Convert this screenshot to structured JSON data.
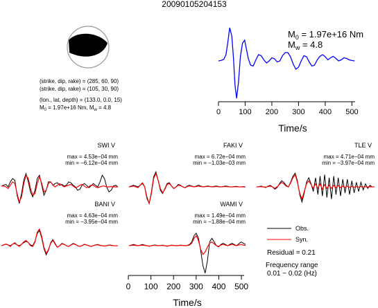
{
  "title": "20090105204153",
  "event": {
    "plane1": "(strike, dip, rake) = (285, 60, 90)",
    "plane2": "(strike, dip, rake) = (105, 30, 90)",
    "location": "(lon., lat, depth) = (133.0, 0.0, 15)",
    "summary_m0": "M",
    "summary_m0_sub": "0",
    "summary_m0_val": " = 1.97e+16 Nm, M",
    "summary_mw_sub": "w",
    "summary_mw_val": " = 4.8"
  },
  "stf": {
    "m0_label": "M",
    "m0_sub": "0",
    "m0_value": " = 1.97e+16 Nm",
    "mw_label": "M",
    "mw_sub": "w",
    "mw_value": " = 4.8",
    "xlabel": "Time/s",
    "line_color": "#0000ff"
  },
  "traces": [
    {
      "station": "SWI V",
      "max": "max = 4.53e−04 mm",
      "min": "min = −6.12e−04 mm"
    },
    {
      "station": "FAKI V",
      "max": "max = 6.72e−04 mm",
      "min": "min = −1.03e−03 mm"
    },
    {
      "station": "TLE V",
      "max": "max = 4.71e−04 mm",
      "min": "min = −3.97e−04 mm"
    },
    {
      "station": "BANI V",
      "max": "max = 4.63e−04 mm",
      "min": "min = −3.95e−04 mm"
    },
    {
      "station": "WAMI V",
      "max": "max = 1.49e−04 mm",
      "min": "min = −1.88e−04 mm"
    }
  ],
  "legend": {
    "obs": "Obs.",
    "syn": "Syn.",
    "obs_color": "#000000",
    "syn_color": "#ff0000",
    "residual": "Residual = 0.21",
    "freq_title": "Frequency range",
    "freq_value": "0.01 − 0.02 (Hz)"
  },
  "bottom_axis": {
    "xlabel": "Time/s"
  },
  "chart_data": [
    {
      "type": "line",
      "title": "",
      "xlabel": "Time/s",
      "ylabel": "",
      "xlim": [
        0,
        512
      ],
      "xticks": [
        0,
        100,
        200,
        300,
        400,
        500
      ],
      "grid": false,
      "series": [
        {
          "color": "#0000ff",
          "x": [
            0,
            10,
            20,
            28,
            35,
            42,
            50,
            56,
            62,
            68,
            75,
            82,
            90,
            98,
            105,
            112,
            120,
            130,
            140,
            150,
            160,
            170,
            180,
            190,
            200,
            210,
            220,
            230,
            240,
            250,
            260,
            270,
            280,
            290,
            300,
            310,
            320,
            330,
            340,
            350,
            360,
            370,
            380,
            390,
            400,
            410,
            420,
            430,
            440,
            450,
            460,
            470,
            480,
            490,
            500,
            510
          ],
          "y": [
            0.0,
            0.02,
            0.08,
            0.3,
            0.9,
            1.6,
            1.2,
            0.2,
            -1.2,
            -1.8,
            -1.0,
            0.2,
            0.85,
            1.0,
            0.55,
            0.1,
            -0.2,
            -0.25,
            0.05,
            0.3,
            0.25,
            0.05,
            -0.1,
            0.0,
            0.15,
            0.1,
            -0.05,
            0.0,
            0.25,
            0.4,
            0.4,
            0.2,
            -0.15,
            -0.4,
            -0.3,
            0.0,
            0.25,
            0.2,
            -0.05,
            -0.25,
            -0.2,
            0.05,
            0.22,
            0.3,
            0.2,
            0.05,
            0.15,
            0.22,
            0.12,
            0.0,
            0.05,
            0.15,
            0.12,
            0.05,
            0.02,
            0.0
          ]
        }
      ]
    },
    {
      "type": "line",
      "title": "",
      "xlabel": "Time/s",
      "ylabel": "",
      "xlim": [
        0,
        512
      ],
      "xticks": [
        0,
        100,
        200,
        300,
        400,
        500
      ],
      "grid": false,
      "panels": [
        {
          "station": "SWI V",
          "obs": [
            0.05,
            0.1,
            0.15,
            0.0,
            0.3,
            0.5,
            0.4,
            -0.5,
            -1.0,
            -0.4,
            0.4,
            0.8,
            0.3,
            -0.3,
            -0.6,
            -0.2,
            0.5,
            0.7,
            0.1,
            -0.5,
            -0.2,
            0.3,
            0.3,
            0.1,
            0.2,
            0.25,
            0.1,
            0.15,
            0.05,
            0.1,
            0.3,
            0.25,
            0.1,
            0.0,
            -0.2,
            -0.15,
            0.1,
            0.2,
            0.1,
            -0.05,
            0.05,
            0.2,
            0.1,
            0.0,
            0.3,
            0.7,
            0.5,
            0.0,
            -0.3,
            -0.2,
            0.05,
            0.1,
            0.0
          ],
          "syn": [
            0.05,
            0.05,
            0.0,
            -0.1,
            0.1,
            0.3,
            0.2,
            -0.4,
            -0.9,
            -0.6,
            0.2,
            0.7,
            0.5,
            -0.1,
            -0.5,
            -0.4,
            0.2,
            0.6,
            0.2,
            -0.3,
            -0.2,
            0.2,
            0.3,
            0.1,
            0.0,
            0.1,
            0.2,
            0.1,
            0.0,
            0.05,
            0.1,
            0.15,
            0.05,
            -0.05,
            0.0,
            0.1,
            0.15,
            0.05,
            -0.05,
            0.0,
            0.1,
            0.1,
            0.0,
            -0.05,
            0.0,
            0.05,
            0.05,
            0.0,
            0.0,
            0.02,
            0.0,
            0.0,
            0.0
          ]
        },
        {
          "station": "FAKI V",
          "obs": [
            0.0,
            0.05,
            0.1,
            0.05,
            0.0,
            0.1,
            0.2,
            0.0,
            -0.6,
            -1.0,
            -0.3,
            0.6,
            0.9,
            0.4,
            -0.2,
            -0.4,
            -0.1,
            0.2,
            0.25,
            0.05,
            -0.1,
            0.0,
            0.15,
            0.1,
            0.0,
            -0.05,
            0.05,
            0.1,
            0.05,
            0.0,
            0.05,
            0.1,
            0.05,
            0.0,
            0.02,
            0.05,
            0.03,
            0.0,
            0.03,
            0.05,
            0.02,
            0.0,
            0.02,
            0.05,
            0.03,
            0.0,
            0.0,
            0.02,
            0.03,
            0.0,
            0.0,
            0.02,
            0.0
          ],
          "syn": [
            0.0,
            0.02,
            0.05,
            0.0,
            -0.05,
            0.1,
            0.25,
            0.0,
            -0.7,
            -1.0,
            -0.4,
            0.5,
            0.8,
            0.4,
            -0.1,
            -0.35,
            -0.15,
            0.15,
            0.2,
            0.05,
            -0.1,
            0.0,
            0.1,
            0.08,
            0.0,
            -0.05,
            0.02,
            0.06,
            0.03,
            0.0,
            0.02,
            0.05,
            0.02,
            0.0,
            0.01,
            0.03,
            0.02,
            0.0,
            0.01,
            0.02,
            0.01,
            0.0,
            0.01,
            0.02,
            0.01,
            0.0,
            0.0,
            0.01,
            0.01,
            0.0,
            0.0,
            0.0,
            0.0
          ]
        },
        {
          "station": "TLE V",
          "obs": [
            0.0,
            0.02,
            0.05,
            0.0,
            -0.05,
            0.05,
            0.1,
            0.0,
            -0.15,
            -0.05,
            0.2,
            0.4,
            0.3,
            0.1,
            0.0,
            0.3,
            0.7,
            0.9,
            0.4,
            -0.5,
            -1.0,
            -0.4,
            0.3,
            0.6,
            0.2,
            -0.3,
            0.6,
            -0.5,
            0.7,
            -0.6,
            0.8,
            -0.7,
            0.6,
            -0.8,
            0.7,
            -0.5,
            0.6,
            -0.6,
            0.5,
            -0.4,
            0.5,
            -0.5,
            0.4,
            -0.4,
            0.3,
            -0.3,
            0.3,
            -0.2,
            0.2,
            -0.1,
            0.1,
            0.0,
            0.0
          ],
          "syn": [
            0.0,
            0.01,
            0.02,
            0.0,
            -0.02,
            0.02,
            0.05,
            0.0,
            -0.1,
            0.0,
            0.15,
            0.3,
            0.2,
            0.05,
            0.0,
            0.25,
            0.6,
            0.8,
            0.3,
            -0.4,
            -0.8,
            -0.3,
            0.2,
            0.4,
            0.15,
            -0.1,
            0.2,
            -0.1,
            0.2,
            -0.15,
            0.15,
            -0.1,
            0.1,
            -0.1,
            0.1,
            -0.05,
            0.1,
            -0.05,
            0.05,
            -0.05,
            0.05,
            -0.03,
            0.03,
            -0.02,
            0.02,
            -0.02,
            0.02,
            -0.01,
            0.01,
            0.0,
            0.0,
            0.0,
            0.0
          ]
        },
        {
          "station": "BANI V",
          "obs": [
            0.0,
            0.05,
            0.1,
            0.05,
            0.0,
            0.1,
            0.15,
            0.05,
            0.0,
            0.1,
            0.2,
            0.3,
            0.2,
            0.05,
            0.0,
            0.3,
            0.8,
            1.0,
            0.5,
            -0.2,
            -0.6,
            -0.3,
            0.2,
            0.4,
            0.15,
            -0.1,
            0.0,
            0.15,
            0.1,
            0.0,
            -0.05,
            0.05,
            0.15,
            0.1,
            0.0,
            -0.05,
            0.0,
            0.1,
            0.05,
            0.0,
            -0.05,
            0.0,
            0.05,
            0.08,
            0.03,
            0.0,
            -0.03,
            0.0,
            0.05,
            0.03,
            0.0,
            0.0,
            0.0
          ],
          "syn": [
            0.0,
            0.05,
            0.12,
            0.05,
            -0.05,
            0.1,
            0.2,
            0.05,
            -0.05,
            0.1,
            0.25,
            0.35,
            0.2,
            0.0,
            -0.05,
            0.25,
            0.9,
            1.1,
            0.6,
            -0.1,
            -0.5,
            -0.25,
            0.15,
            0.35,
            0.1,
            -0.1,
            0.0,
            0.12,
            0.08,
            0.0,
            -0.05,
            0.04,
            0.12,
            0.08,
            0.0,
            -0.04,
            0.0,
            0.08,
            0.04,
            0.0,
            -0.04,
            0.0,
            0.04,
            0.06,
            0.02,
            0.0,
            -0.02,
            0.0,
            0.04,
            0.02,
            0.0,
            0.0,
            0.0
          ]
        },
        {
          "station": "WAMI V",
          "obs": [
            0.0,
            0.05,
            0.1,
            0.05,
            0.0,
            0.05,
            0.1,
            0.05,
            0.0,
            -0.05,
            0.0,
            0.05,
            0.05,
            0.0,
            0.02,
            0.05,
            0.0,
            -0.05,
            0.0,
            0.05,
            0.03,
            0.0,
            0.02,
            0.05,
            0.03,
            0.0,
            0.02,
            0.1,
            0.3,
            0.8,
            1.0,
            0.6,
            -0.4,
            -1.6,
            -2.2,
            -1.2,
            0.3,
            0.6,
            0.3,
            0.0,
            -0.1,
            0.1,
            0.2,
            0.1,
            0.0,
            0.1,
            0.2,
            0.1,
            0.0,
            0.15,
            0.3,
            0.2,
            0.1
          ],
          "syn": [
            0.0,
            0.03,
            0.05,
            0.02,
            0.0,
            0.03,
            0.05,
            0.02,
            0.0,
            -0.03,
            0.0,
            0.03,
            0.03,
            0.0,
            0.01,
            0.03,
            0.0,
            -0.03,
            0.0,
            0.03,
            0.02,
            0.0,
            0.01,
            0.03,
            0.02,
            0.0,
            0.01,
            0.05,
            0.2,
            0.6,
            0.8,
            0.4,
            -0.3,
            -0.7,
            -0.5,
            -0.1,
            0.2,
            0.3,
            0.15,
            0.0,
            -0.05,
            0.05,
            0.1,
            0.05,
            0.0,
            0.05,
            0.1,
            0.05,
            0.0,
            0.05,
            0.1,
            0.05,
            0.02
          ]
        }
      ]
    }
  ]
}
